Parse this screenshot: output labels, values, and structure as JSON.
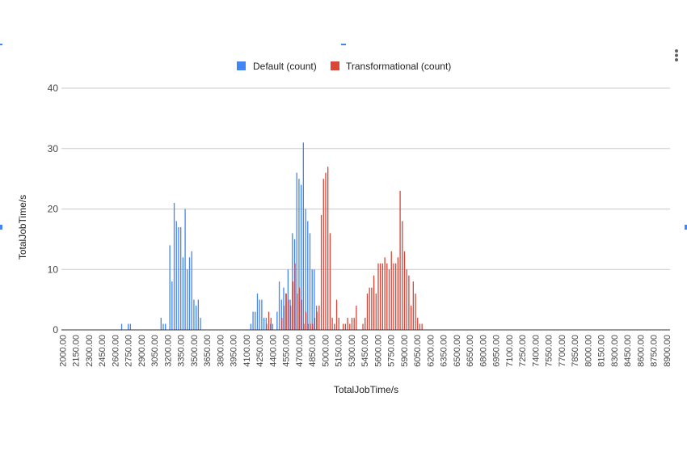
{
  "colors": {
    "default": "#4285f4",
    "transformational": "#db4437",
    "grid": "#cccccc",
    "axis": "#333333"
  },
  "menu": {
    "icon": "more-vert-icon"
  },
  "chart_data": {
    "type": "bar",
    "xlabel": "TotalJobTime/s",
    "ylabel": "TotalJobTime/s",
    "ylim": [
      0,
      40
    ],
    "yticks": [
      "0",
      "10",
      "20",
      "30",
      "40"
    ],
    "grid": true,
    "legend_position": "top",
    "x_start": 2000,
    "x_step": 25,
    "x_ticks": [
      "2000.00",
      "2150.00",
      "2300.00",
      "2450.00",
      "2600.00",
      "2750.00",
      "2900.00",
      "3050.00",
      "3200.00",
      "3350.00",
      "3500.00",
      "3650.00",
      "3800.00",
      "3950.00",
      "4100.00",
      "4250.00",
      "4400.00",
      "4550.00",
      "4700.00",
      "4850.00",
      "5000.00",
      "5150.00",
      "5300.00",
      "5450.00",
      "5600.00",
      "5750.00",
      "5900.00",
      "6050.00",
      "6200.00",
      "6350.00",
      "6500.00",
      "6650.00",
      "6800.00",
      "6950.00",
      "7100.00",
      "7250.00",
      "7400.00",
      "7550.00",
      "7700.00",
      "7850.00",
      "8000.00",
      "8150.00",
      "8300.00",
      "8450.00",
      "8600.00",
      "8750.00",
      "8900.00"
    ],
    "series": [
      {
        "name": "Default (count)",
        "points": [
          [
            2675,
            1
          ],
          [
            2750,
            1
          ],
          [
            2775,
            1
          ],
          [
            3125,
            2
          ],
          [
            3150,
            1
          ],
          [
            3175,
            1
          ],
          [
            3225,
            14
          ],
          [
            3250,
            8
          ],
          [
            3275,
            21
          ],
          [
            3300,
            18
          ],
          [
            3325,
            17
          ],
          [
            3350,
            17
          ],
          [
            3375,
            12
          ],
          [
            3400,
            20
          ],
          [
            3425,
            10
          ],
          [
            3450,
            12
          ],
          [
            3475,
            13
          ],
          [
            3500,
            5
          ],
          [
            3525,
            4
          ],
          [
            3550,
            5
          ],
          [
            3575,
            2
          ],
          [
            4150,
            1
          ],
          [
            4175,
            3
          ],
          [
            4200,
            3
          ],
          [
            4225,
            6
          ],
          [
            4250,
            5
          ],
          [
            4275,
            5
          ],
          [
            4300,
            2
          ],
          [
            4325,
            2
          ],
          [
            4375,
            1
          ],
          [
            4400,
            1
          ],
          [
            4450,
            3
          ],
          [
            4475,
            8
          ],
          [
            4500,
            5
          ],
          [
            4525,
            7
          ],
          [
            4550,
            6
          ],
          [
            4575,
            10
          ],
          [
            4600,
            5
          ],
          [
            4625,
            16
          ],
          [
            4650,
            15
          ],
          [
            4675,
            26
          ],
          [
            4700,
            25
          ],
          [
            4725,
            24
          ],
          [
            4750,
            31
          ],
          [
            4775,
            20
          ],
          [
            4800,
            18
          ],
          [
            4825,
            16
          ],
          [
            4850,
            10
          ],
          [
            4875,
            10
          ],
          [
            4900,
            4
          ]
        ]
      },
      {
        "name": "Transformational (count)",
        "points": [
          [
            4330,
            1
          ],
          [
            4355,
            3
          ],
          [
            4380,
            2
          ],
          [
            4505,
            2
          ],
          [
            4530,
            4
          ],
          [
            4555,
            6
          ],
          [
            4580,
            5
          ],
          [
            4605,
            4
          ],
          [
            4630,
            8
          ],
          [
            4655,
            11
          ],
          [
            4680,
            6
          ],
          [
            4705,
            7
          ],
          [
            4730,
            5
          ],
          [
            4755,
            1
          ],
          [
            4780,
            3
          ],
          [
            4805,
            1
          ],
          [
            4830,
            1
          ],
          [
            4855,
            1
          ],
          [
            4880,
            2
          ],
          [
            4905,
            3
          ],
          [
            4930,
            4
          ],
          [
            4955,
            19
          ],
          [
            4980,
            25
          ],
          [
            5005,
            26
          ],
          [
            5030,
            27
          ],
          [
            5055,
            16
          ],
          [
            5080,
            2
          ],
          [
            5105,
            1
          ],
          [
            5130,
            5
          ],
          [
            5155,
            2
          ],
          [
            5205,
            1
          ],
          [
            5230,
            1
          ],
          [
            5255,
            2
          ],
          [
            5280,
            1
          ],
          [
            5305,
            2
          ],
          [
            5330,
            2
          ],
          [
            5355,
            4
          ],
          [
            5430,
            1
          ],
          [
            5455,
            2
          ],
          [
            5480,
            6
          ],
          [
            5505,
            7
          ],
          [
            5530,
            7
          ],
          [
            5555,
            9
          ],
          [
            5580,
            6
          ],
          [
            5605,
            11
          ],
          [
            5630,
            11
          ],
          [
            5655,
            11
          ],
          [
            5680,
            12
          ],
          [
            5705,
            11
          ],
          [
            5730,
            10
          ],
          [
            5755,
            13
          ],
          [
            5780,
            11
          ],
          [
            5805,
            11
          ],
          [
            5830,
            12
          ],
          [
            5855,
            23
          ],
          [
            5880,
            18
          ],
          [
            5905,
            13
          ],
          [
            5930,
            10
          ],
          [
            5955,
            9
          ],
          [
            5980,
            4
          ],
          [
            6005,
            8
          ],
          [
            6030,
            6
          ],
          [
            6055,
            2
          ],
          [
            6080,
            1
          ],
          [
            6105,
            1
          ]
        ]
      }
    ]
  }
}
